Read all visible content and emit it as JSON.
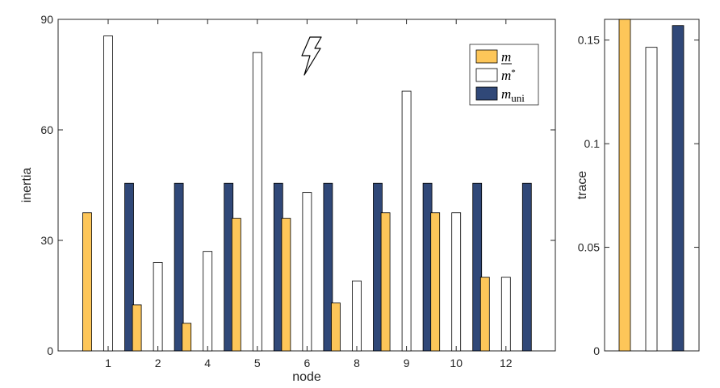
{
  "chart_data": [
    {
      "type": "bar",
      "xlabel": "node",
      "ylabel": "inertia",
      "ylim": [
        0,
        90
      ],
      "yticks": [
        0,
        30,
        60,
        90
      ],
      "categories": [
        "1",
        "2",
        "4",
        "5",
        "6",
        "8",
        "9",
        "10",
        "12"
      ],
      "series": [
        {
          "name": "m",
          "values": [
            37.5,
            12.5,
            7.5,
            36,
            36,
            13,
            37.5,
            37.5,
            20
          ]
        },
        {
          "name": "m*",
          "values": [
            85.5,
            24,
            27,
            81,
            43,
            19,
            70.5,
            37.5,
            20
          ]
        },
        {
          "name": "m_uni",
          "values": [
            45.5,
            45.5,
            45.5,
            45.5,
            45.5,
            45.5,
            45.5,
            45.5,
            45.5
          ]
        }
      ],
      "legend": {
        "position": "top-right",
        "items": [
          {
            "key": "m_bar",
            "base": "m",
            "underline": true
          },
          {
            "key": "m_star",
            "base": "m",
            "sup": "*"
          },
          {
            "key": "m_uni",
            "base": "m",
            "sub": "uni"
          }
        ]
      },
      "annotation": "lightning-bolt-icon"
    },
    {
      "type": "bar",
      "xlabel": "",
      "ylabel": "trace",
      "ylim": [
        0,
        0.16
      ],
      "yticks": [
        "0",
        "0.05",
        "0.1",
        "0.15"
      ],
      "categories": [
        "m",
        "m*",
        "m_uni"
      ],
      "values": [
        0.16,
        0.1465,
        0.157
      ]
    }
  ],
  "colors": {
    "m": "#fdc659",
    "m_star": "#ffffff",
    "m_uni": "#304878",
    "axis": "#262626"
  }
}
